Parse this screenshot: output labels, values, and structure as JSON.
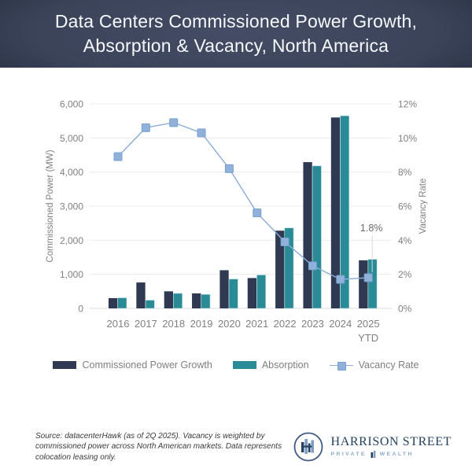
{
  "header": {
    "title_line1": "Data Centers Commissioned Power Growth,",
    "title_line2": "Absorption & Vacancy, North America"
  },
  "chart_data": {
    "type": "bar+line combo",
    "categories": [
      "2016",
      "2017",
      "2018",
      "2019",
      "2020",
      "2021",
      "2022",
      "2023",
      "2024",
      "2025"
    ],
    "last_category_sublabel": "YTD",
    "series": [
      {
        "name": "Commissioned Power Growth",
        "type": "bar",
        "axis": "left",
        "color": "#2f3a52",
        "values": [
          300,
          760,
          500,
          440,
          1120,
          890,
          2280,
          4290,
          5600,
          1410
        ]
      },
      {
        "name": "Absorption",
        "type": "bar",
        "axis": "left",
        "color": "#2a8b96",
        "values": [
          310,
          240,
          440,
          410,
          860,
          980,
          2360,
          4180,
          5650,
          1440
        ]
      },
      {
        "name": "Vacancy Rate",
        "type": "line",
        "axis": "right",
        "color": "#8badd6",
        "values": [
          8.9,
          10.6,
          10.9,
          10.3,
          8.2,
          5.6,
          3.9,
          2.5,
          1.7,
          1.8
        ]
      }
    ],
    "left_axis": {
      "title": "Commissioned Power (MW)",
      "min": 0,
      "max": 6000,
      "step": 1000,
      "tick_labels": [
        "0",
        "1,000",
        "2,000",
        "3,000",
        "4,000",
        "5,000",
        "6,000"
      ]
    },
    "right_axis": {
      "title": "Vacancy Rate",
      "min": 0,
      "max": 12,
      "step": 2,
      "tick_labels": [
        "0%",
        "2%",
        "4%",
        "6%",
        "8%",
        "10%",
        "12%"
      ]
    },
    "annotation": {
      "text": "1.8%",
      "category_index": 9,
      "series": "Vacancy Rate",
      "value": 1.8
    },
    "grid": true,
    "legend_position": "bottom"
  },
  "legend": {
    "items": [
      {
        "label": "Commissioned Power Growth",
        "swatch": "bar",
        "color": "#2f3a52"
      },
      {
        "label": "Absorption",
        "swatch": "bar",
        "color": "#2a8b96"
      },
      {
        "label": "Vacancy Rate",
        "swatch": "line-marker",
        "color": "#8badd6"
      }
    ]
  },
  "footer": {
    "source": "Source: datacenterHawk (as of 2Q 2025). Vacancy is weighted by commissioned power across North American markets. Data represents colocation leasing only.",
    "logo": {
      "name": "HARRISON STREET",
      "sub_left": "PRIVATE",
      "sub_right": "WEALTH"
    }
  },
  "colors": {
    "banner_bg": "#3b4359",
    "banner_edge": "#222939",
    "bar_primary": "#2f3a52",
    "bar_secondary": "#2a8b96",
    "line": "#8badd6",
    "marker_fill": "#8fb1da",
    "marker_stroke": "#79a1cc",
    "grid": "#ececec",
    "baseline": "#d9d9d9",
    "axis_text": "#808080",
    "annotation_text": "#6b6b6b",
    "annotation_leader": "#d8d8d8",
    "logo_navy": "#24405f",
    "logo_blue": "#7d9ec4"
  }
}
